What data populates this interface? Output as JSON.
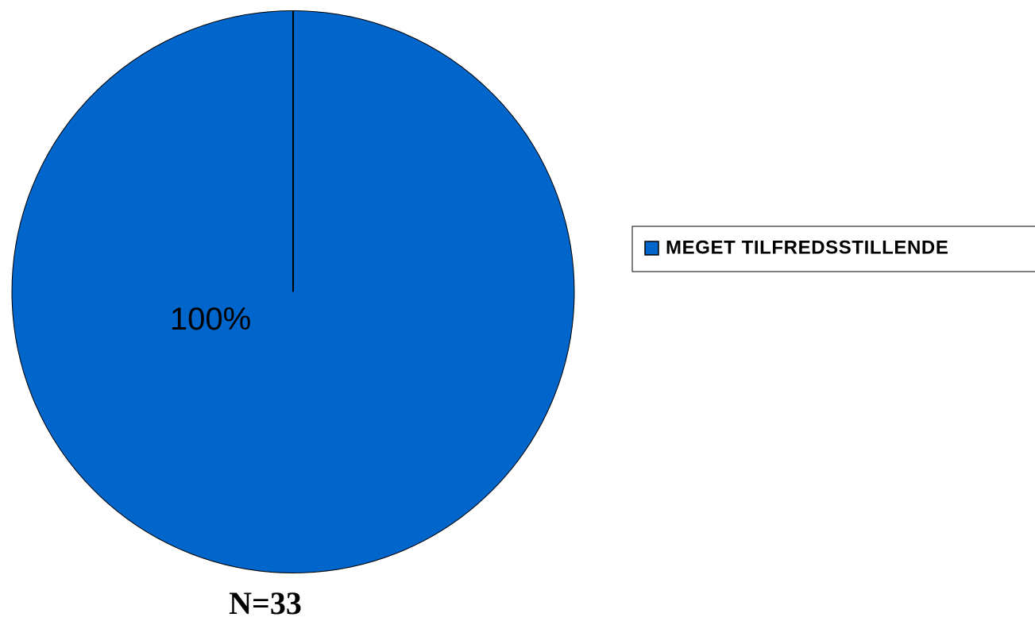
{
  "chart_data": {
    "type": "pie",
    "categories": [
      "MEGET TILFREDSSTILLENDE"
    ],
    "values": [
      100
    ],
    "value_labels": [
      "100%"
    ],
    "color": "#0066cc",
    "annotation": "N=33"
  }
}
